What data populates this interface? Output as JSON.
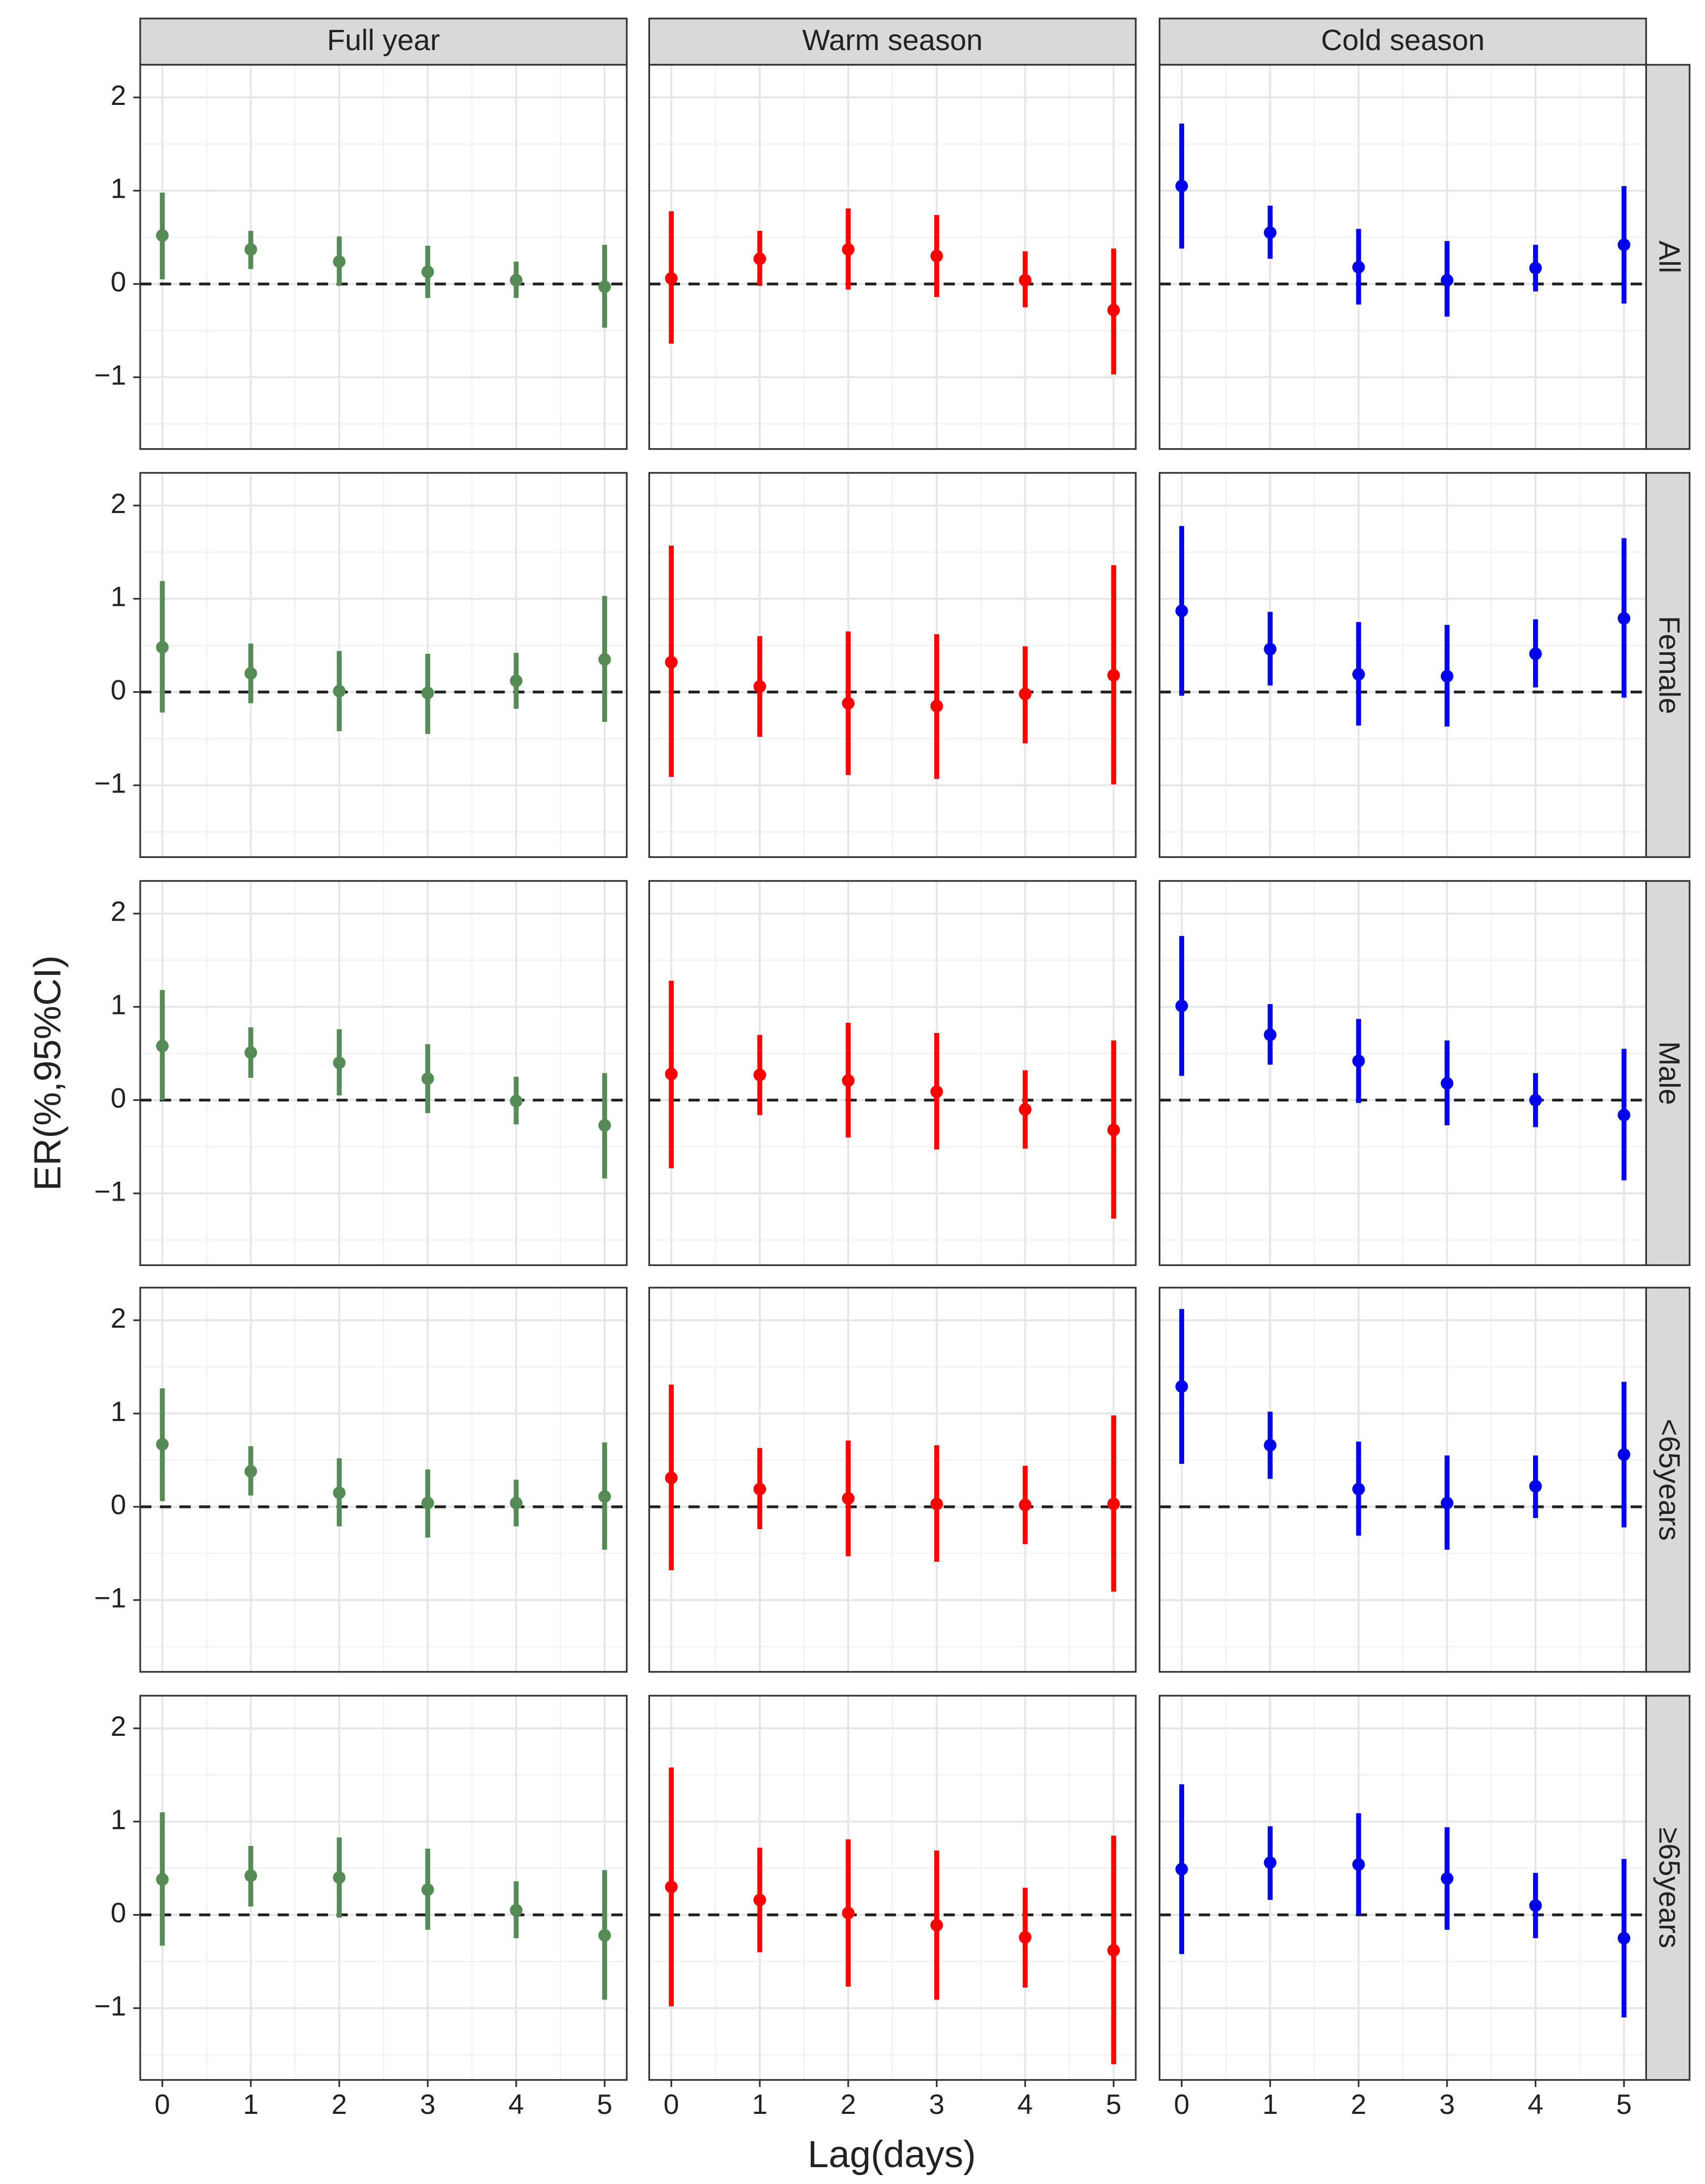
{
  "chart_data": {
    "type": "pointrange",
    "x_label": "Lag(days)",
    "y_label": "ER(%,95%CI)",
    "columns": [
      {
        "name": "Full year",
        "color": "#558b55"
      },
      {
        "name": "Warm season",
        "color": "#ff0000"
      },
      {
        "name": "Cold season",
        "color": "#0000ee"
      }
    ],
    "rows": [
      "All",
      "Female",
      "Male",
      "<65years",
      "≥65years"
    ],
    "x": [
      0,
      1,
      2,
      3,
      4,
      5
    ],
    "xlim": [
      -0.25,
      5.25
    ],
    "xticks": [
      0,
      1,
      2,
      3,
      4,
      5
    ],
    "ylim": [
      -1.77,
      2.35
    ],
    "yticks": [
      {
        "value": -1,
        "label": "−1"
      },
      0,
      1,
      2
    ],
    "reference_line": 0,
    "grid": true,
    "panels": [
      [
        {
          "estimate": [
            0.52,
            0.37,
            0.24,
            0.13,
            0.04,
            -0.03
          ],
          "lower": [
            0.05,
            0.16,
            -0.02,
            -0.15,
            -0.15,
            -0.47
          ],
          "upper": [
            0.98,
            0.57,
            0.51,
            0.41,
            0.24,
            0.42
          ]
        },
        {
          "estimate": [
            0.06,
            0.27,
            0.37,
            0.3,
            0.04,
            -0.28
          ],
          "lower": [
            -0.64,
            -0.02,
            -0.06,
            -0.14,
            -0.25,
            -0.97
          ],
          "upper": [
            0.78,
            0.57,
            0.81,
            0.74,
            0.35,
            0.38
          ]
        },
        {
          "estimate": [
            1.05,
            0.55,
            0.18,
            0.04,
            0.17,
            0.42
          ],
          "lower": [
            0.38,
            0.27,
            -0.22,
            -0.35,
            -0.08,
            -0.21
          ],
          "upper": [
            1.72,
            0.84,
            0.59,
            0.46,
            0.42,
            1.05
          ]
        }
      ],
      [
        {
          "estimate": [
            0.48,
            0.2,
            0.01,
            -0.01,
            0.12,
            0.35
          ],
          "lower": [
            -0.22,
            -0.12,
            -0.42,
            -0.45,
            -0.18,
            -0.32
          ],
          "upper": [
            1.19,
            0.52,
            0.44,
            0.41,
            0.42,
            1.03
          ]
        },
        {
          "estimate": [
            0.32,
            0.06,
            -0.12,
            -0.15,
            -0.02,
            0.18
          ],
          "lower": [
            -0.91,
            -0.48,
            -0.89,
            -0.93,
            -0.55,
            -0.99
          ],
          "upper": [
            1.57,
            0.6,
            0.65,
            0.62,
            0.49,
            1.36
          ]
        },
        {
          "estimate": [
            0.87,
            0.46,
            0.19,
            0.17,
            0.41,
            0.79
          ],
          "lower": [
            -0.04,
            0.07,
            -0.36,
            -0.37,
            0.05,
            -0.06
          ],
          "upper": [
            1.78,
            0.86,
            0.75,
            0.72,
            0.78,
            1.65
          ]
        }
      ],
      [
        {
          "estimate": [
            0.58,
            0.51,
            0.4,
            0.23,
            -0.01,
            -0.27
          ],
          "lower": [
            0.0,
            0.24,
            0.05,
            -0.14,
            -0.26,
            -0.84
          ],
          "upper": [
            1.18,
            0.78,
            0.76,
            0.6,
            0.25,
            0.29
          ]
        },
        {
          "estimate": [
            0.28,
            0.27,
            0.21,
            0.09,
            -0.1,
            -0.32
          ],
          "lower": [
            -0.73,
            -0.16,
            -0.4,
            -0.53,
            -0.52,
            -1.27
          ],
          "upper": [
            1.28,
            0.7,
            0.83,
            0.72,
            0.32,
            0.64
          ]
        },
        {
          "estimate": [
            1.01,
            0.7,
            0.42,
            0.18,
            0.0,
            -0.16
          ],
          "lower": [
            0.26,
            0.38,
            -0.03,
            -0.27,
            -0.29,
            -0.86
          ],
          "upper": [
            1.76,
            1.03,
            0.87,
            0.64,
            0.29,
            0.55
          ]
        }
      ],
      [
        {
          "estimate": [
            0.67,
            0.38,
            0.15,
            0.04,
            0.04,
            0.11
          ],
          "lower": [
            0.06,
            0.12,
            -0.21,
            -0.33,
            -0.21,
            -0.46
          ],
          "upper": [
            1.27,
            0.65,
            0.52,
            0.4,
            0.29,
            0.69
          ]
        },
        {
          "estimate": [
            0.31,
            0.19,
            0.09,
            0.03,
            0.02,
            0.03
          ],
          "lower": [
            -0.68,
            -0.24,
            -0.53,
            -0.59,
            -0.4,
            -0.91
          ],
          "upper": [
            1.31,
            0.63,
            0.71,
            0.66,
            0.44,
            0.98
          ]
        },
        {
          "estimate": [
            1.29,
            0.66,
            0.19,
            0.04,
            0.22,
            0.56
          ],
          "lower": [
            0.46,
            0.3,
            -0.31,
            -0.46,
            -0.12,
            -0.22
          ],
          "upper": [
            2.12,
            1.02,
            0.7,
            0.55,
            0.55,
            1.34
          ]
        }
      ],
      [
        {
          "estimate": [
            0.38,
            0.42,
            0.4,
            0.27,
            0.05,
            -0.22
          ],
          "lower": [
            -0.33,
            0.09,
            -0.03,
            -0.16,
            -0.25,
            -0.91
          ],
          "upper": [
            1.1,
            0.74,
            0.83,
            0.71,
            0.36,
            0.48
          ]
        },
        {
          "estimate": [
            0.3,
            0.16,
            0.02,
            -0.11,
            -0.24,
            -0.38
          ],
          "lower": [
            -0.98,
            -0.4,
            -0.77,
            -0.91,
            -0.78,
            -1.6
          ],
          "upper": [
            1.58,
            0.72,
            0.81,
            0.69,
            0.29,
            0.85
          ]
        },
        {
          "estimate": [
            0.49,
            0.56,
            0.54,
            0.39,
            0.1,
            -0.25
          ],
          "lower": [
            -0.42,
            0.16,
            0.0,
            -0.16,
            -0.25,
            -1.1
          ],
          "upper": [
            1.4,
            0.95,
            1.09,
            0.94,
            0.45,
            0.6
          ]
        }
      ]
    ]
  }
}
